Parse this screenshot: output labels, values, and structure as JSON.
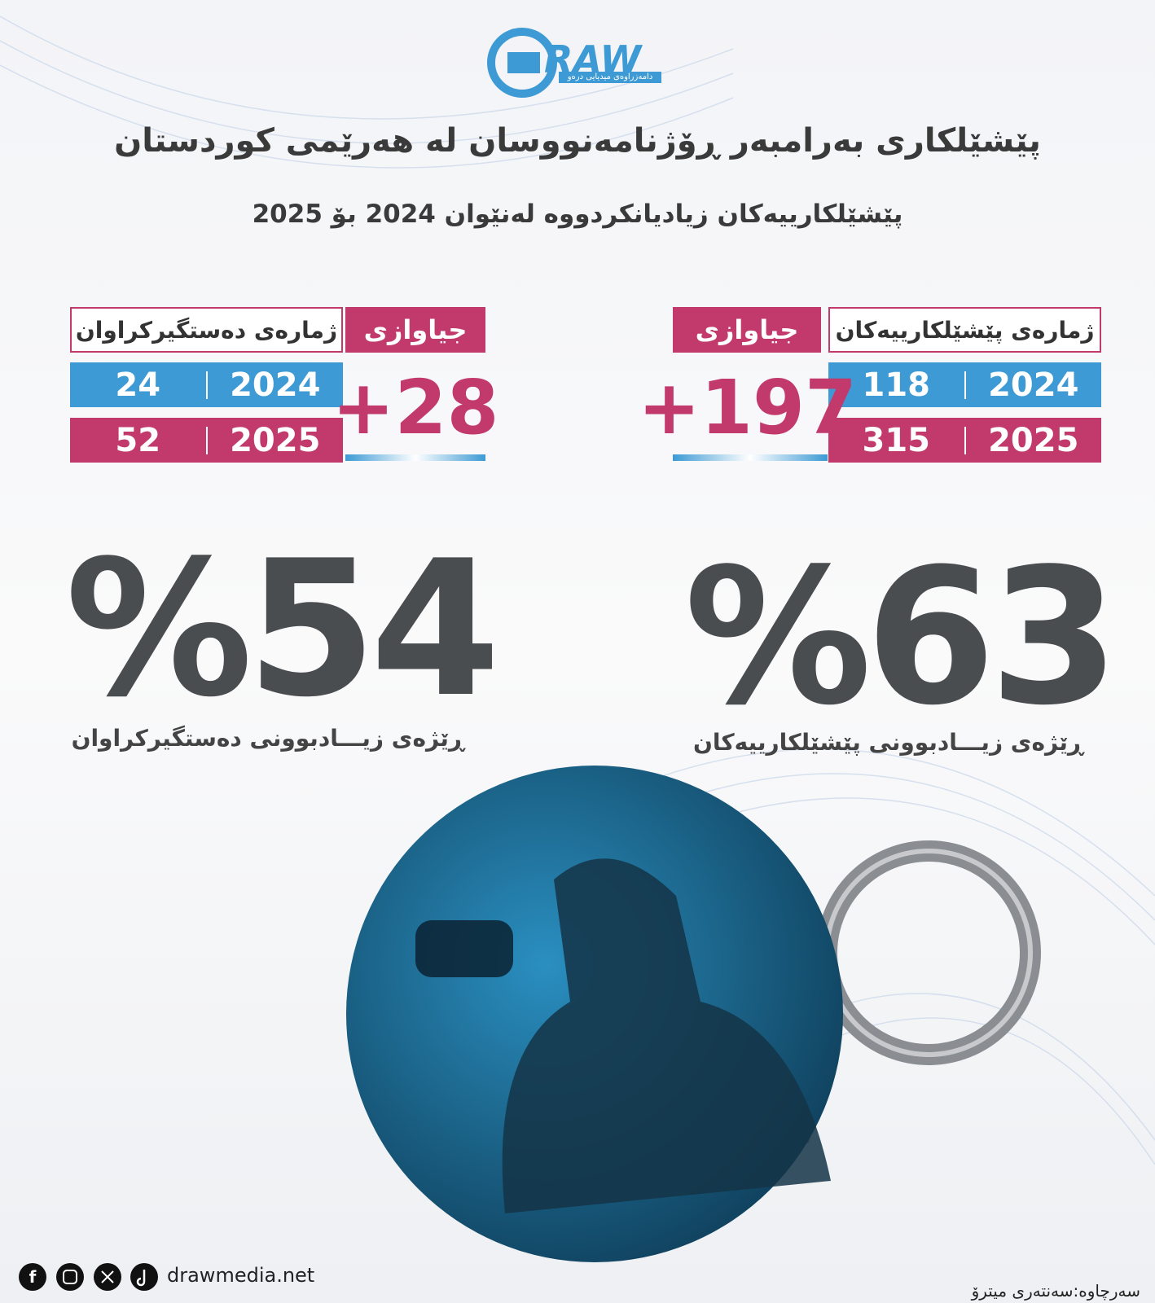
{
  "logo": {
    "text": "RAW",
    "tagline": "دامەزراوەی میدیایی درەو"
  },
  "header": {
    "title": "پێشێلکاری بەرامبەر ڕۆژنامەنووسان لە هەرێمی کوردستان",
    "subtitle": "پێشێلکارییەکان زیادیانکردووە لەنێوان 2024 بۆ 2025"
  },
  "violations": {
    "label": "ژمارەی پێشێلکارییەکان",
    "difference_label": "جیاوازی",
    "rows": [
      [
        "2024",
        "118"
      ],
      [
        "2025",
        "315"
      ]
    ],
    "difference": "+197",
    "rate": "%63",
    "rate_caption": "ڕێژەی زیـــادبوونی  پێشێلکارییەکان"
  },
  "detainees": {
    "label": "ژمارەی دەستگیرکراوان",
    "difference_label": "جیاوازی",
    "rows": [
      [
        "2024",
        "24"
      ],
      [
        "2025",
        "52"
      ]
    ],
    "difference": "+28",
    "rate": "%54",
    "rate_caption": "ڕێژەی زیـــادبوونی دەستگیرکراوان"
  },
  "footer": {
    "website": "drawmedia.net",
    "source": "سەرچاوە:سەنتەری میترۆ"
  }
}
